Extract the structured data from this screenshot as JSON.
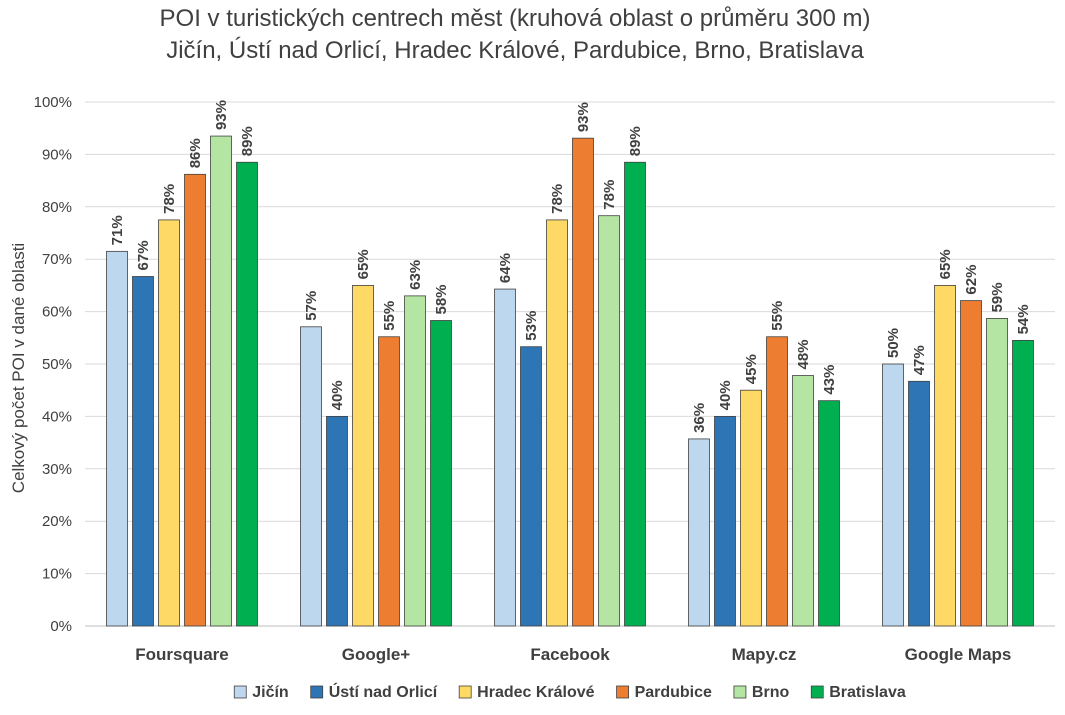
{
  "chart_data": {
    "type": "bar",
    "title": "POI v turistických centrech měst (kruhová oblast o průměru 300 m)",
    "subtitle": "Jičín, Ústí nad Orlicí, Hradec Králové, Pardubice, Brno, Bratislava",
    "ylabel": "Celkový počet POI v dané oblasti",
    "xlabel": "",
    "ylim": [
      0,
      1
    ],
    "yticks": [
      "0%",
      "10%",
      "20%",
      "30%",
      "40%",
      "50%",
      "60%",
      "70%",
      "80%",
      "90%",
      "100%"
    ],
    "grid": true,
    "legend_position": "bottom",
    "categories": [
      "Foursquare",
      "Google+",
      "Facebook",
      "Mapy.cz",
      "Google Maps"
    ],
    "series": [
      {
        "name": "Jičín",
        "color": "#bdd7ee",
        "values": [
          0.715,
          0.571,
          0.643,
          0.357,
          0.5
        ],
        "labels": [
          "71%",
          "57%",
          "64%",
          "36%",
          "50%"
        ]
      },
      {
        "name": "Ústí nad Orlicí",
        "color": "#2e75b6",
        "values": [
          0.667,
          0.4,
          0.533,
          0.4,
          0.467
        ],
        "labels": [
          "67%",
          "40%",
          "53%",
          "40%",
          "47%"
        ]
      },
      {
        "name": "Hradec Králové",
        "color": "#ffd966",
        "values": [
          0.775,
          0.65,
          0.775,
          0.45,
          0.65
        ],
        "labels": [
          "78%",
          "65%",
          "78%",
          "45%",
          "65%"
        ]
      },
      {
        "name": "Pardubice",
        "color": "#ed7d31",
        "values": [
          0.862,
          0.552,
          0.931,
          0.552,
          0.621
        ],
        "labels": [
          "86%",
          "55%",
          "93%",
          "55%",
          "62%"
        ]
      },
      {
        "name": "Brno",
        "color": "#b4e5a2",
        "values": [
          0.935,
          0.63,
          0.783,
          0.478,
          0.587
        ],
        "labels": [
          "93%",
          "63%",
          "78%",
          "48%",
          "59%"
        ]
      },
      {
        "name": "Bratislava",
        "color": "#00b050",
        "values": [
          0.885,
          0.583,
          0.885,
          0.43,
          0.545
        ],
        "labels": [
          "89%",
          "58%",
          "89%",
          "43%",
          "54%"
        ]
      }
    ]
  }
}
